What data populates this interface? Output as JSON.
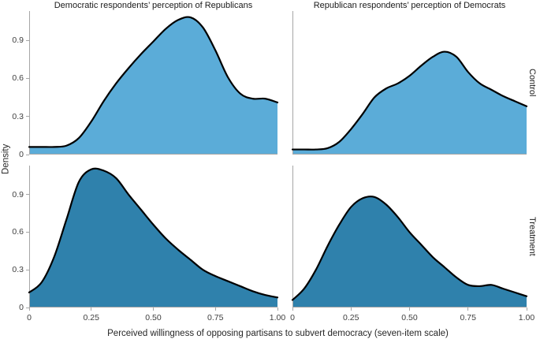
{
  "figure": {
    "col_titles": [
      "Democratic respondents’ perception of Republicans",
      "Republican respondents’ perception of Democrats"
    ],
    "row_labels": [
      "Control",
      "Treatment"
    ],
    "xlabel": "Perceived willingness of opposing partisans to subvert democracy (seven-item scale)",
    "ylabel": "Density"
  },
  "chart_data": {
    "type": "area",
    "variant": "faceted-kernel-density-2x2",
    "title": "",
    "xlabel": "Perceived willingness of opposing partisans to subvert democracy (seven-item scale)",
    "ylabel": "Density",
    "xlim": [
      0,
      1
    ],
    "ylim": [
      0,
      1.13
    ],
    "grid": false,
    "legend": "none",
    "x_tick_values": [
      0,
      0.25,
      0.5,
      0.75,
      1
    ],
    "x_tick_labels": [
      "0",
      "0.25",
      "0.50",
      "0.75",
      "1.00"
    ],
    "y_tick_values": [
      0,
      0.3,
      0.6,
      0.9
    ],
    "y_tick_labels": [
      "0",
      "0.3",
      "0.6",
      "0.9"
    ],
    "x": [
      0,
      0.05,
      0.1,
      0.15,
      0.2,
      0.25,
      0.3,
      0.35,
      0.4,
      0.45,
      0.5,
      0.55,
      0.6,
      0.65,
      0.7,
      0.75,
      0.8,
      0.85,
      0.9,
      0.95,
      1
    ],
    "panels": [
      {
        "row": "Control",
        "col": "Democratic respondents’ perception of Republicans",
        "fill_color": "#5BACD8",
        "line_color": "#000000",
        "peak_x": 0.63,
        "peak_density": 1.08,
        "values": [
          0.06,
          0.06,
          0.06,
          0.07,
          0.13,
          0.26,
          0.42,
          0.56,
          0.68,
          0.79,
          0.89,
          0.99,
          1.06,
          1.08,
          1.0,
          0.82,
          0.61,
          0.48,
          0.44,
          0.44,
          0.41
        ]
      },
      {
        "row": "Control",
        "col": "Republican respondents’ perception of Democrats",
        "fill_color": "#5BACD8",
        "line_color": "#000000",
        "peak_x": 0.65,
        "peak_density": 0.81,
        "values": [
          0.04,
          0.04,
          0.04,
          0.05,
          0.1,
          0.2,
          0.32,
          0.45,
          0.52,
          0.56,
          0.62,
          0.7,
          0.77,
          0.81,
          0.77,
          0.65,
          0.56,
          0.51,
          0.46,
          0.42,
          0.38
        ]
      },
      {
        "row": "Treatment",
        "col": "Democratic respondents’ perception of Republicans",
        "fill_color": "#2F81AC",
        "line_color": "#000000",
        "peak_x": 0.25,
        "peak_density": 1.1,
        "values": [
          0.12,
          0.2,
          0.4,
          0.7,
          1.0,
          1.1,
          1.09,
          1.03,
          0.9,
          0.78,
          0.66,
          0.55,
          0.46,
          0.38,
          0.3,
          0.25,
          0.21,
          0.17,
          0.13,
          0.1,
          0.08
        ]
      },
      {
        "row": "Treatment",
        "col": "Republican respondents’ perception of Democrats",
        "fill_color": "#2F81AC",
        "line_color": "#000000",
        "peak_x": 0.33,
        "peak_density": 0.88,
        "values": [
          0.06,
          0.15,
          0.3,
          0.49,
          0.66,
          0.8,
          0.87,
          0.88,
          0.82,
          0.72,
          0.6,
          0.5,
          0.4,
          0.32,
          0.24,
          0.18,
          0.17,
          0.18,
          0.15,
          0.12,
          0.09
        ]
      }
    ]
  },
  "colors": {
    "control_fill": "#5BACD8",
    "treatment_fill": "#2F81AC",
    "curve_stroke": "#000000",
    "axis_line": "#A6A6A6",
    "tick_label": "#404040",
    "text": "#1A1A1A",
    "background": "#FFFFFF"
  }
}
